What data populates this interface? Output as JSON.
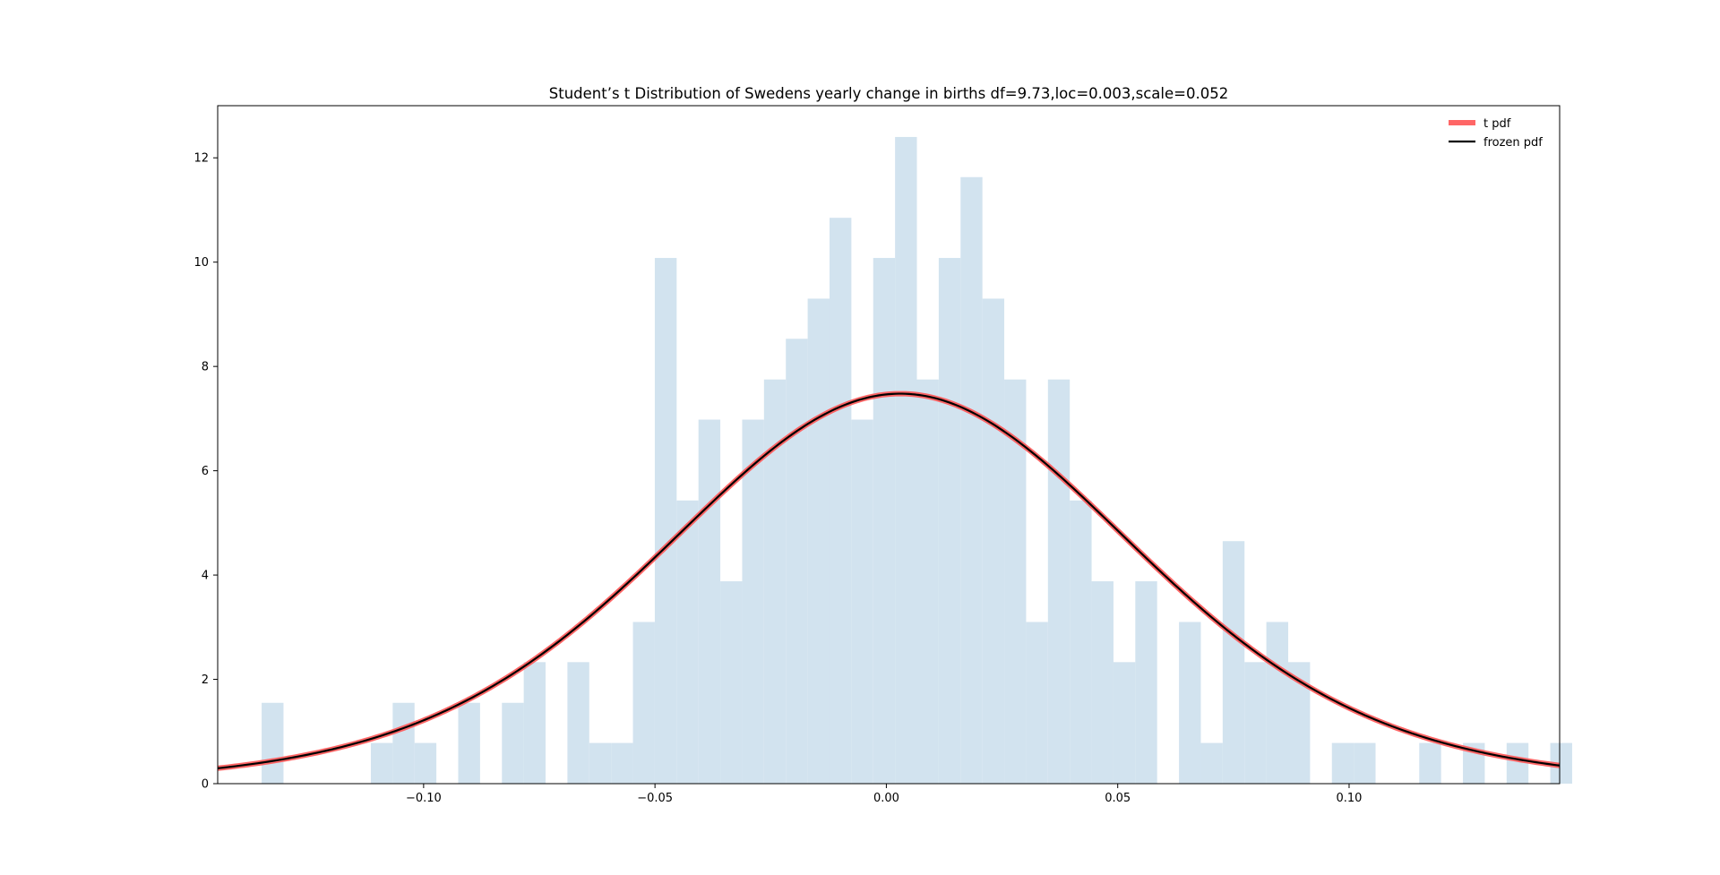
{
  "chart_data": {
    "type": "histogram",
    "title": "Student’s t Distribution of Swedens yearly change in births df=9.73,loc=0.003,scale=0.052",
    "xlabel": "",
    "ylabel": "",
    "xlim": [
      -0.1445,
      0.1455
    ],
    "ylim": [
      0,
      13
    ],
    "grid": false,
    "legend_position": "top-right",
    "x_ticks": [
      -0.1,
      -0.05,
      0.0,
      0.05,
      0.1
    ],
    "x_tick_labels": [
      "−0.10",
      "−0.05",
      "0.00",
      "0.05",
      "0.10"
    ],
    "y_ticks": [
      0,
      2,
      4,
      6,
      8,
      10,
      12
    ],
    "y_tick_labels": [
      "0",
      "2",
      "4",
      "6",
      "8",
      "10",
      "12"
    ],
    "histogram": {
      "color": "#d2e3ef",
      "bin_start": -0.135,
      "bin_width": 0.00472,
      "values": [
        1.55,
        0,
        0,
        0,
        0,
        0.78,
        1.55,
        0.78,
        0,
        1.55,
        0,
        1.55,
        2.33,
        0,
        2.33,
        0.78,
        0.78,
        3.1,
        10.08,
        5.43,
        6.98,
        3.88,
        6.98,
        7.75,
        8.53,
        9.3,
        10.85,
        6.98,
        10.08,
        12.4,
        7.75,
        10.08,
        11.63,
        9.3,
        7.75,
        3.1,
        7.75,
        5.43,
        3.88,
        2.33,
        3.88,
        0,
        3.1,
        0.78,
        4.65,
        2.33,
        3.1,
        2.33,
        0,
        0.78,
        0.78,
        0,
        0,
        0.78,
        0,
        0.78,
        0,
        0.78,
        0,
        0.78
      ]
    },
    "series": [
      {
        "name": "t pdf",
        "color": "#ff5555",
        "distribution": {
          "type": "student_t",
          "df": 9.73,
          "loc": 0.003,
          "scale": 0.052
        }
      },
      {
        "name": "frozen pdf",
        "color": "#000000",
        "distribution": {
          "type": "student_t",
          "df": 9.73,
          "loc": 0.003,
          "scale": 0.052
        }
      }
    ]
  }
}
